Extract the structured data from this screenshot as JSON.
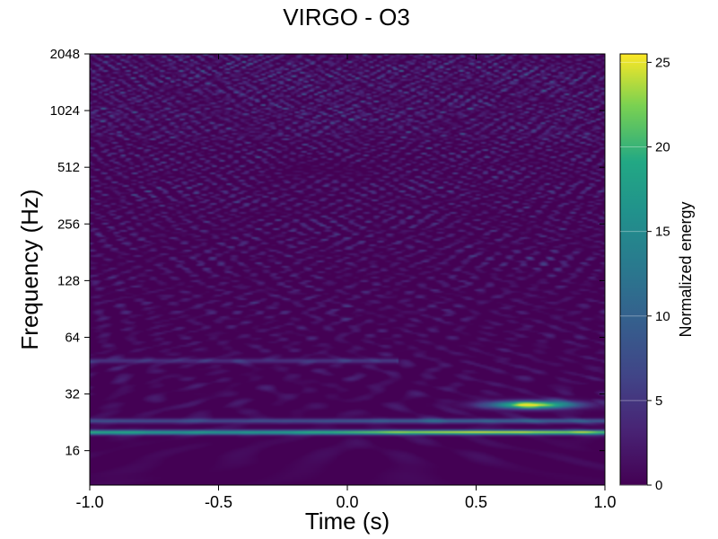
{
  "chart_data": {
    "type": "heatmap",
    "title": "VIRGO - O3",
    "xlabel": "Time (s)",
    "ylabel": "Frequency (Hz)",
    "xlim": [
      -1.0,
      1.0
    ],
    "ylim": [
      10.5,
      2048
    ],
    "yscale": "log2",
    "x_ticks": [
      {
        "value": -1.0,
        "label": "-1.0"
      },
      {
        "value": -0.5,
        "label": "-0.5"
      },
      {
        "value": 0.0,
        "label": "0.0"
      },
      {
        "value": 0.5,
        "label": "0.5"
      },
      {
        "value": 1.0,
        "label": "1.0"
      }
    ],
    "y_ticks": [
      {
        "value": 16,
        "label": "16"
      },
      {
        "value": 32,
        "label": "32"
      },
      {
        "value": 64,
        "label": "64"
      },
      {
        "value": 128,
        "label": "128"
      },
      {
        "value": 256,
        "label": "256"
      },
      {
        "value": 512,
        "label": "512"
      },
      {
        "value": 1024,
        "label": "1024"
      },
      {
        "value": 2048,
        "label": "2048"
      }
    ],
    "colorbar": {
      "label": "Normalized energy",
      "colormap": "viridis",
      "range": [
        0,
        25.5
      ],
      "ticks": [
        {
          "value": 0,
          "label": "0"
        },
        {
          "value": 5,
          "label": "5"
        },
        {
          "value": 10,
          "label": "10"
        },
        {
          "value": 15,
          "label": "15"
        },
        {
          "value": 20,
          "label": "20"
        },
        {
          "value": 25,
          "label": "25"
        }
      ]
    },
    "features": [
      {
        "type": "line",
        "freq_hz": 20,
        "t_start": -1.0,
        "t_end": 1.0,
        "energy": 24
      },
      {
        "type": "line",
        "freq_hz": 23,
        "t_start": -1.0,
        "t_end": 1.0,
        "energy": 10
      },
      {
        "type": "blob",
        "freq_hz": 28,
        "t_center": 0.72,
        "energy": 25
      },
      {
        "type": "line",
        "freq_hz": 48,
        "t_start": -1.0,
        "t_end": 0.2,
        "energy": 6
      }
    ]
  }
}
